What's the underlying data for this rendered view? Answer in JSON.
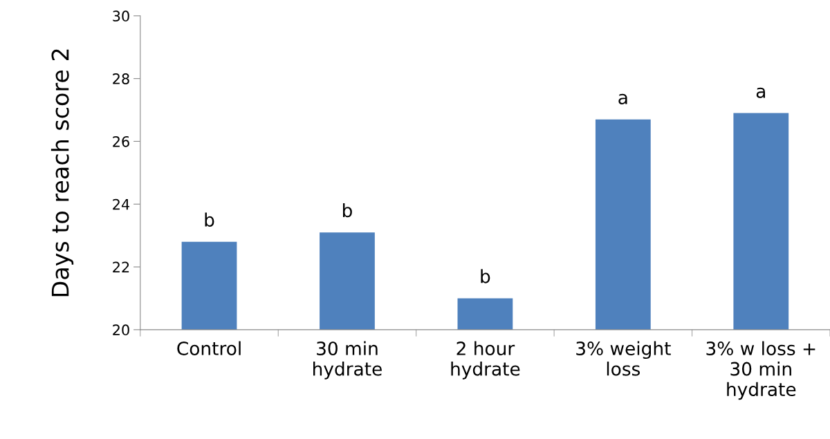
{
  "chart_data": {
    "type": "bar",
    "ylabel": "Days to reach score 2",
    "categories": [
      "Control",
      "30 min\nhydrate",
      "2 hour\nhydrate",
      "3% weight\nloss",
      "3% w loss +\n30 min\nhydrate"
    ],
    "values": [
      22.8,
      23.1,
      21.0,
      26.7,
      26.9
    ],
    "value_labels": [
      "b",
      "b",
      "b",
      "a",
      "a"
    ],
    "color": "#4f81bd",
    "ylim": [
      20,
      30
    ],
    "yticks": [
      20,
      22,
      24,
      26,
      28,
      30
    ],
    "grid": false,
    "legend": false
  }
}
